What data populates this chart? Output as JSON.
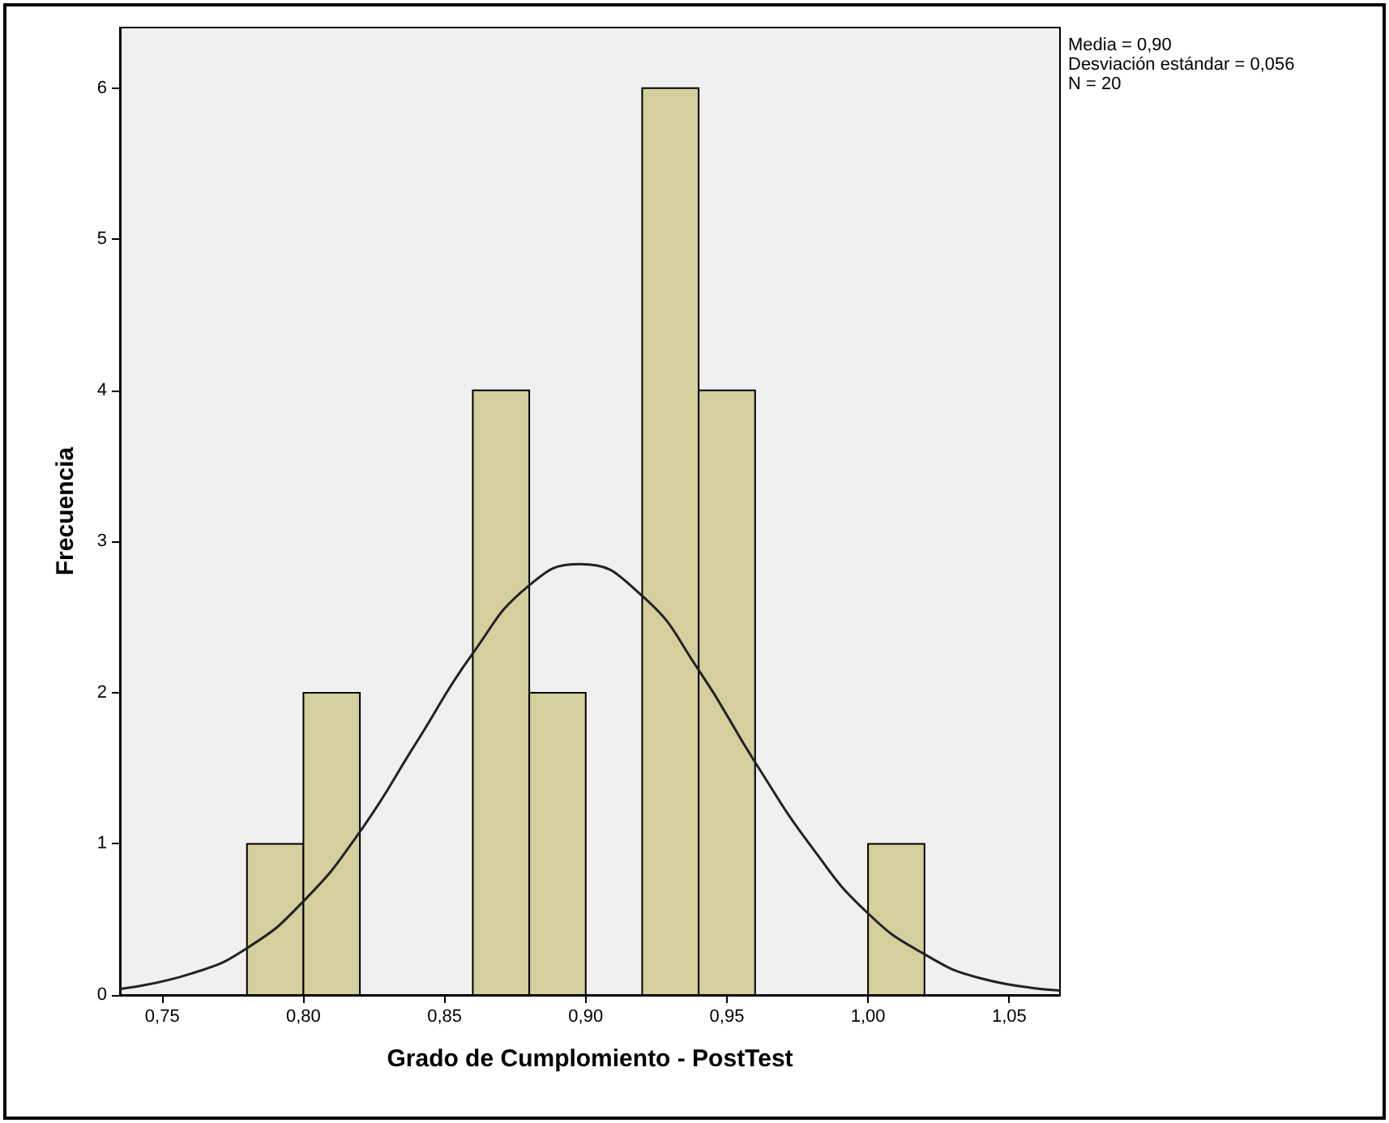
{
  "chart_data": {
    "type": "histogram",
    "xlabel": "Grado de Cumplomiento - PostTest",
    "ylabel": "Frecuencia",
    "annotations": [
      "Media = 0,90",
      "Desviación estándar = 0,056",
      "N = 20"
    ],
    "series": [
      {
        "type": "histogram",
        "color": "#d4cf9c",
        "bins": [
          0.78,
          0.8,
          0.82,
          0.84,
          0.86,
          0.88,
          0.9,
          0.92,
          0.94,
          0.96,
          0.98,
          1.0,
          1.02
        ],
        "values": [
          1,
          2,
          0,
          0,
          4,
          2,
          0,
          6,
          4,
          0,
          0,
          1
        ]
      },
      {
        "type": "line",
        "color": "#222222",
        "x": [
          0.735,
          0.76,
          0.78,
          0.8,
          0.82,
          0.84,
          0.86,
          0.88,
          0.898,
          0.92,
          0.94,
          0.96,
          0.98,
          1.0,
          1.02,
          1.04,
          1.068
        ],
        "values": [
          0.04,
          0.14,
          0.31,
          0.62,
          1.08,
          1.67,
          2.26,
          2.71,
          2.85,
          2.64,
          2.15,
          1.54,
          0.98,
          0.54,
          0.27,
          0.11,
          0.03
        ]
      }
    ],
    "xlim": [
      0.735,
      1.068
    ],
    "xticks": [
      {
        "value": 0.75,
        "label": "0,75"
      },
      {
        "value": 0.8,
        "label": "0,80"
      },
      {
        "value": 0.85,
        "label": "0,85"
      },
      {
        "value": 0.9,
        "label": "0,90"
      },
      {
        "value": 0.95,
        "label": "0,95"
      },
      {
        "value": 1.0,
        "label": "1,00"
      },
      {
        "value": 1.05,
        "label": "1,05"
      }
    ],
    "ylim": [
      0,
      6.4
    ],
    "yticks": [
      0,
      1,
      2,
      3,
      4,
      5,
      6
    ],
    "grid": false
  }
}
